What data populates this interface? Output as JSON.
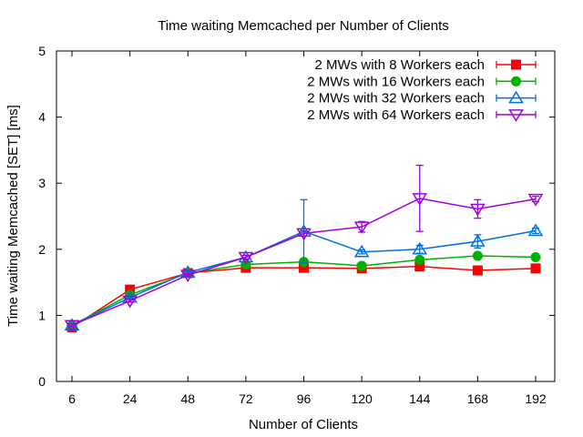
{
  "chart_data": {
    "type": "line",
    "title": "Time waiting Memcached per Number of Clients",
    "xlabel": "Number of Clients",
    "ylabel": "Time waiting Memcached [SET] [ms]",
    "categories": [
      "6",
      "24",
      "48",
      "72",
      "96",
      "120",
      "144",
      "168",
      "192"
    ],
    "x": [
      6,
      24,
      48,
      72,
      96,
      120,
      144,
      168,
      192
    ],
    "ylim": [
      0,
      5
    ],
    "yticks": [
      "0",
      "1",
      "2",
      "3",
      "4",
      "5"
    ],
    "grid": false,
    "legend_position": "top-right",
    "series": [
      {
        "name": "2 MWs with 8 Workers each",
        "color": "#ff0000",
        "marker": "square-filled",
        "values": [
          0.82,
          1.39,
          1.64,
          1.72,
          1.72,
          1.71,
          1.74,
          1.68,
          1.71
        ],
        "error_low": [
          0.8,
          1.37,
          1.62,
          1.69,
          1.69,
          1.69,
          1.71,
          1.66,
          1.69
        ],
        "error_high": [
          0.84,
          1.41,
          1.66,
          1.75,
          1.75,
          1.73,
          1.77,
          1.7,
          1.73
        ]
      },
      {
        "name": "2 MWs with 16 Workers each",
        "color": "#00b000",
        "marker": "circle-filled",
        "values": [
          0.85,
          1.31,
          1.64,
          1.77,
          1.81,
          1.75,
          1.84,
          1.9,
          1.88
        ],
        "error_low": [
          0.83,
          1.29,
          1.62,
          1.74,
          1.78,
          1.72,
          1.81,
          1.87,
          1.85
        ],
        "error_high": [
          0.87,
          1.33,
          1.66,
          1.8,
          1.84,
          1.78,
          1.87,
          1.93,
          1.91
        ]
      },
      {
        "name": "2 MWs with 32 Workers each",
        "color": "#0070e0",
        "marker": "triangle-up-open",
        "values": [
          0.85,
          1.27,
          1.65,
          1.88,
          2.27,
          1.96,
          2.0,
          2.12,
          2.28
        ],
        "error_low": [
          0.83,
          1.25,
          1.63,
          1.85,
          1.8,
          1.93,
          1.94,
          2.02,
          2.24
        ],
        "error_high": [
          0.87,
          1.29,
          1.67,
          1.91,
          2.75,
          1.99,
          2.06,
          2.22,
          2.32
        ]
      },
      {
        "name": "2 MWs with 64 Workers each",
        "color": "#a000e0",
        "marker": "triangle-down-open",
        "values": [
          0.85,
          1.22,
          1.61,
          1.88,
          2.24,
          2.34,
          2.77,
          2.61,
          2.76
        ],
        "error_low": [
          0.83,
          1.2,
          1.59,
          1.85,
          2.2,
          2.26,
          2.27,
          2.47,
          2.72
        ],
        "error_high": [
          0.87,
          1.24,
          1.63,
          1.91,
          2.28,
          2.42,
          3.27,
          2.75,
          2.8
        ]
      }
    ]
  }
}
